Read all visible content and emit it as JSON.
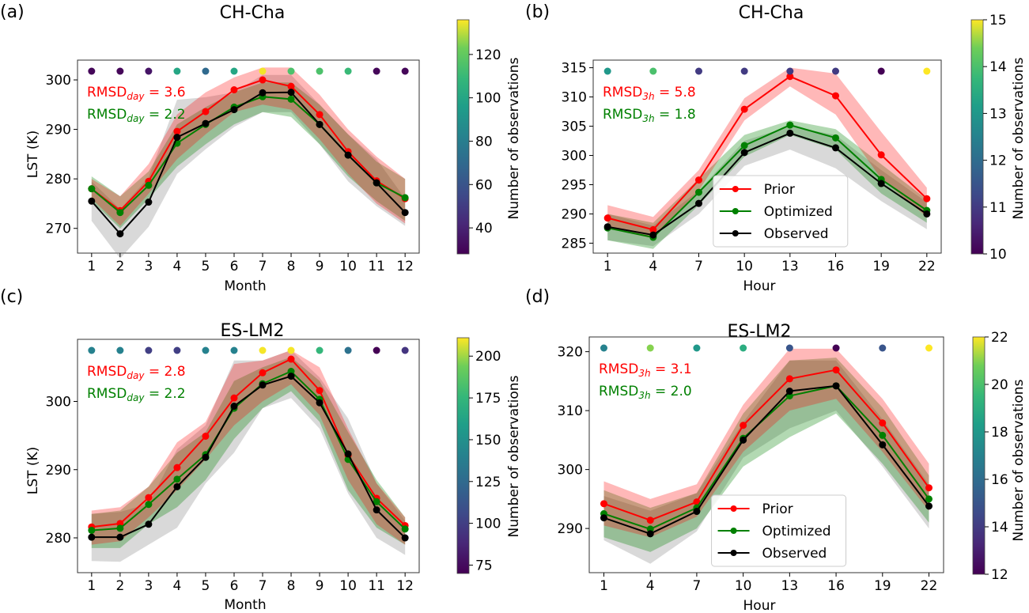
{
  "figure": {
    "colormap": "viridis",
    "colors": {
      "prior": "#ff0000",
      "optimized": "#008000",
      "observed": "#000000",
      "prior_band": "#ff0000",
      "optimized_band": "#008000",
      "observed_band": "#808080"
    },
    "legend": {
      "labels": [
        "Prior",
        "Optimized",
        "Observed"
      ]
    }
  },
  "chart_data": [
    {
      "panel": "(a)",
      "type": "line",
      "title": "CH-Cha",
      "xlabel": "Month",
      "ylabel": "LST (K)",
      "x": [
        1,
        2,
        3,
        4,
        5,
        6,
        7,
        8,
        9,
        10,
        11,
        12
      ],
      "xticks": [
        "1",
        "2",
        "3",
        "4",
        "5",
        "6",
        "7",
        "8",
        "9",
        "10",
        "11",
        "12"
      ],
      "ylim": [
        265,
        304
      ],
      "yticks": [
        270,
        280,
        290,
        300
      ],
      "show_ylabel": true,
      "legend": false,
      "rmsd": [
        {
          "label": "RMSD",
          "sub": "day",
          "value": "3.6",
          "color": "#ff0000"
        },
        {
          "label": "RMSD",
          "sub": "day",
          "value": "2.2",
          "color": "#008000"
        }
      ],
      "series": [
        {
          "name": "Prior",
          "values": [
            278.0,
            273.6,
            279.5,
            289.6,
            293.6,
            298.0,
            300.0,
            298.7,
            293.0,
            285.5,
            279.6,
            276.0
          ],
          "lower": [
            276.0,
            270.5,
            277.0,
            284.0,
            289.0,
            293.5,
            295.0,
            294.0,
            288.0,
            281.0,
            275.0,
            271.0
          ],
          "upper": [
            280.0,
            276.5,
            283.0,
            293.0,
            297.5,
            300.5,
            302.5,
            302.5,
            297.0,
            290.0,
            284.5,
            280.0
          ]
        },
        {
          "name": "Optimized",
          "values": [
            278.0,
            273.2,
            278.7,
            287.2,
            291.0,
            294.5,
            296.6,
            296.1,
            291.0,
            284.8,
            279.2,
            276.2
          ],
          "lower": [
            275.5,
            270.0,
            276.0,
            282.5,
            287.0,
            291.0,
            293.5,
            292.5,
            287.0,
            280.5,
            275.5,
            271.5
          ],
          "upper": [
            280.5,
            276.5,
            281.5,
            291.0,
            294.5,
            297.5,
            299.5,
            299.5,
            295.0,
            289.0,
            283.5,
            280.0
          ]
        },
        {
          "name": "Observed",
          "values": [
            275.5,
            268.9,
            275.3,
            288.4,
            291.2,
            294.0,
            297.4,
            297.5,
            291.0,
            284.8,
            279.2,
            273.2
          ],
          "lower": [
            271.5,
            263.9,
            270.3,
            281.0,
            286.0,
            290.5,
            293.5,
            293.5,
            287.0,
            279.5,
            274.5,
            270.5
          ],
          "upper": [
            279.5,
            273.9,
            280.3,
            296.0,
            296.5,
            297.5,
            301.0,
            301.0,
            295.0,
            289.0,
            284.0,
            276.0
          ]
        }
      ],
      "n_obs": [
        30,
        30,
        35,
        100,
        70,
        100,
        135,
        115,
        115,
        110,
        30,
        30
      ],
      "colorbar": {
        "label": "Number of observations",
        "range": [
          28,
          136
        ],
        "ticks": [
          40,
          60,
          80,
          100,
          120
        ]
      }
    },
    {
      "panel": "(b)",
      "type": "line",
      "title": "CH-Cha",
      "xlabel": "Hour",
      "ylabel": "",
      "x": [
        1,
        4,
        7,
        10,
        13,
        16,
        19,
        22
      ],
      "xticks": [
        "1",
        "4",
        "7",
        "10",
        "13",
        "16",
        "19",
        "22"
      ],
      "ylim": [
        283.3,
        316.3
      ],
      "yticks": [
        285,
        290,
        295,
        300,
        305,
        310,
        315
      ],
      "show_ylabel": false,
      "legend": true,
      "rmsd": [
        {
          "label": "RMSD",
          "sub": "3h",
          "value": "5.8",
          "color": "#ff0000"
        },
        {
          "label": "RMSD",
          "sub": "3h",
          "value": "1.8",
          "color": "#008000"
        }
      ],
      "series": [
        {
          "name": "Prior",
          "values": [
            289.3,
            287.3,
            295.8,
            307.9,
            313.5,
            310.2,
            300.1,
            292.6
          ],
          "lower": [
            287.5,
            285.8,
            294.0,
            306.0,
            311.8,
            307.0,
            296.0,
            289.5
          ],
          "upper": [
            291.5,
            289.5,
            297.5,
            309.8,
            315.0,
            314.0,
            304.0,
            294.5
          ]
        },
        {
          "name": "Optimized",
          "values": [
            287.6,
            286.0,
            293.7,
            301.7,
            305.2,
            303.0,
            295.9,
            290.6
          ],
          "lower": [
            285.5,
            284.0,
            291.5,
            299.8,
            303.5,
            301.0,
            293.5,
            288.5
          ],
          "upper": [
            290.0,
            288.5,
            296.0,
            303.5,
            306.0,
            304.5,
            298.5,
            292.5
          ]
        },
        {
          "name": "Observed",
          "values": [
            287.8,
            286.4,
            291.8,
            300.5,
            303.8,
            301.3,
            295.2,
            290.0
          ],
          "lower": [
            285.5,
            284.5,
            290.0,
            298.2,
            301.0,
            297.8,
            292.2,
            287.4
          ],
          "upper": [
            290.0,
            288.0,
            294.0,
            302.5,
            305.0,
            303.5,
            297.5,
            292.0
          ]
        }
      ],
      "n_obs": [
        13,
        14,
        11,
        11,
        11,
        11,
        10,
        15
      ],
      "colorbar": {
        "label": "Number of observations",
        "range": [
          10,
          15
        ],
        "ticks": [
          10,
          11,
          12,
          13,
          14,
          15
        ]
      }
    },
    {
      "panel": "(c)",
      "type": "line",
      "title": "ES-LM2",
      "xlabel": "Month",
      "ylabel": "LST (K)",
      "x": [
        1,
        2,
        3,
        4,
        5,
        6,
        7,
        8,
        9,
        10,
        11,
        12
      ],
      "xticks": [
        "1",
        "2",
        "3",
        "4",
        "5",
        "6",
        "7",
        "8",
        "9",
        "10",
        "11",
        "12"
      ],
      "ylim": [
        274.9,
        309.1
      ],
      "yticks": [
        280,
        290,
        300
      ],
      "show_ylabel": true,
      "legend": false,
      "rmsd": [
        {
          "label": "RMSD",
          "sub": "day",
          "value": "2.8",
          "color": "#ff0000"
        },
        {
          "label": "RMSD",
          "sub": "day",
          "value": "2.2",
          "color": "#008000"
        }
      ],
      "series": [
        {
          "name": "Prior",
          "values": [
            281.6,
            282.1,
            285.9,
            290.3,
            294.9,
            300.5,
            304.2,
            306.2,
            301.6,
            292.1,
            285.8,
            281.8
          ],
          "lower": [
            279.0,
            279.5,
            283.0,
            287.0,
            291.5,
            296.5,
            300.0,
            302.5,
            298.0,
            288.5,
            282.0,
            279.0
          ],
          "upper": [
            284.0,
            284.5,
            287.5,
            294.0,
            297.0,
            305.5,
            306.0,
            307.5,
            305.0,
            296.0,
            288.0,
            283.0
          ]
        },
        {
          "name": "Optimized",
          "values": [
            281.1,
            281.4,
            284.9,
            288.6,
            292.2,
            299.0,
            302.6,
            304.4,
            300.3,
            291.5,
            285.3,
            281.3
          ],
          "lower": [
            278.5,
            278.5,
            282.0,
            284.5,
            288.5,
            294.5,
            299.0,
            301.5,
            297.0,
            287.0,
            281.5,
            279.0
          ],
          "upper": [
            283.5,
            284.0,
            287.5,
            292.5,
            295.5,
            303.0,
            305.0,
            306.5,
            303.0,
            295.5,
            288.5,
            283.0
          ]
        },
        {
          "name": "Observed",
          "values": [
            280.1,
            280.1,
            282.0,
            287.5,
            291.8,
            299.3,
            302.4,
            303.7,
            299.8,
            292.3,
            284.1,
            280.0
          ],
          "lower": [
            276.6,
            276.5,
            279.0,
            281.5,
            288.0,
            292.5,
            299.0,
            300.5,
            296.0,
            286.5,
            280.0,
            277.5
          ],
          "upper": [
            283.5,
            283.8,
            285.0,
            293.0,
            296.5,
            306.0,
            306.0,
            307.5,
            303.5,
            297.5,
            288.0,
            282.5
          ]
        }
      ],
      "n_obs": [
        140,
        140,
        100,
        100,
        140,
        140,
        210,
        210,
        175,
        130,
        70,
        95
      ],
      "colorbar": {
        "label": "Number of observations",
        "range": [
          70,
          211
        ],
        "ticks": [
          75,
          100,
          125,
          150,
          175,
          200
        ]
      }
    },
    {
      "panel": "(d)",
      "type": "line",
      "title": "ES-LM2",
      "xlabel": "Hour",
      "ylabel": "",
      "x": [
        1,
        4,
        7,
        10,
        13,
        16,
        19,
        22
      ],
      "xticks": [
        "1",
        "4",
        "7",
        "10",
        "13",
        "16",
        "19",
        "22"
      ],
      "ylim": [
        282.5,
        322.5
      ],
      "yticks": [
        290,
        300,
        310,
        320
      ],
      "show_ylabel": false,
      "legend": true,
      "rmsd": [
        {
          "label": "RMSD",
          "sub": "3h",
          "value": "3.1",
          "color": "#ff0000"
        },
        {
          "label": "RMSD",
          "sub": "3h",
          "value": "2.0",
          "color": "#008000"
        }
      ],
      "series": [
        {
          "name": "Prior",
          "values": [
            294.2,
            291.4,
            294.5,
            307.5,
            315.4,
            316.9,
            307.9,
            296.9
          ],
          "lower": [
            290.5,
            288.5,
            292.0,
            303.0,
            310.0,
            312.0,
            303.0,
            293.0
          ],
          "upper": [
            298.0,
            295.0,
            297.5,
            311.0,
            320.5,
            320.5,
            312.0,
            301.0
          ]
        },
        {
          "name": "Optimized",
          "values": [
            292.5,
            289.9,
            293.5,
            305.3,
            312.5,
            314.2,
            305.8,
            295.0
          ],
          "lower": [
            288.5,
            286.0,
            290.0,
            300.5,
            305.5,
            309.5,
            301.0,
            291.0
          ],
          "upper": [
            296.5,
            293.5,
            296.0,
            309.5,
            318.5,
            319.0,
            310.5,
            299.0
          ]
        },
        {
          "name": "Observed",
          "values": [
            291.8,
            289.1,
            292.9,
            305.0,
            313.3,
            314.2,
            304.2,
            293.8
          ],
          "lower": [
            288.0,
            284.0,
            289.5,
            302.0,
            307.0,
            310.0,
            300.5,
            290.0
          ],
          "upper": [
            295.5,
            293.0,
            296.0,
            308.0,
            318.5,
            318.5,
            308.5,
            297.5
          ]
        }
      ],
      "n_obs": [
        17,
        21,
        18,
        19,
        15,
        12,
        15,
        22
      ],
      "colorbar": {
        "label": "Number of observations",
        "range": [
          12,
          22
        ],
        "ticks": [
          12,
          14,
          16,
          18,
          20,
          22
        ]
      }
    }
  ]
}
